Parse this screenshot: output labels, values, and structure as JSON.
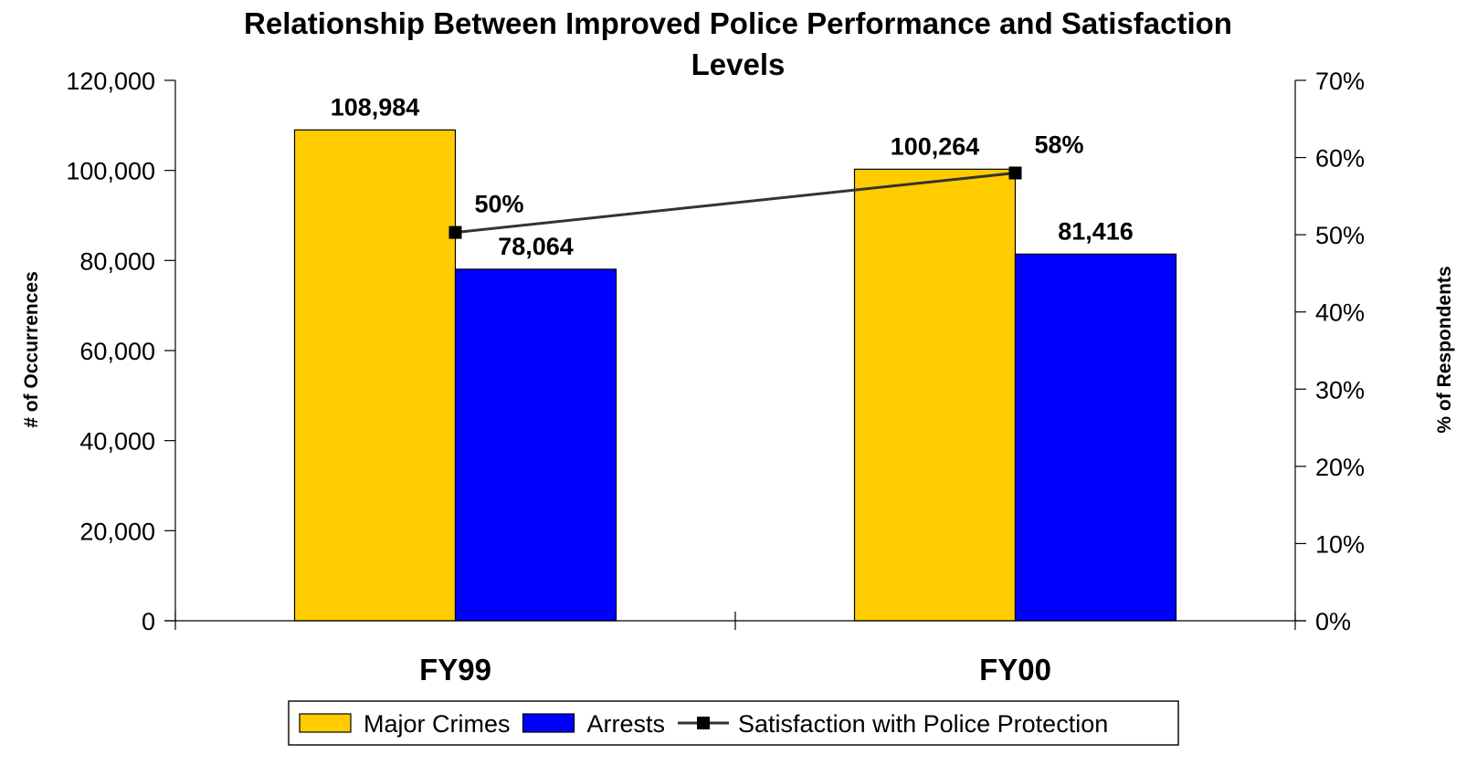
{
  "chart_data": {
    "type": "bar",
    "title": "Relationship Between Improved Police Performance and Satisfaction Levels",
    "title_lines": [
      "Relationship Between Improved Police Performance and Satisfaction",
      "Levels"
    ],
    "categories": [
      "FY99",
      "FY00"
    ],
    "series": [
      {
        "name": "Major Crimes",
        "type": "bar",
        "axis": "left",
        "color": "#FFCC00",
        "values": [
          108984,
          100264
        ],
        "labels": [
          "108,984",
          "100,264"
        ]
      },
      {
        "name": "Arrests",
        "type": "bar",
        "axis": "left",
        "color": "#0000FF",
        "values": [
          78064,
          81416
        ],
        "labels": [
          "78,064",
          "81,416"
        ]
      },
      {
        "name": "Satisfaction with Police Protection",
        "type": "line",
        "axis": "right",
        "color": "#333333",
        "values": [
          50.3,
          58
        ],
        "labels": [
          "50%",
          "58%"
        ]
      }
    ],
    "ylabel": "# of Occurrences",
    "y2label": "% of Respondents",
    "ylim": [
      0,
      120000
    ],
    "y2lim": [
      0,
      70
    ],
    "yticks": [
      "0",
      "20,000",
      "40,000",
      "60,000",
      "80,000",
      "100,000",
      "120,000"
    ],
    "y2ticks": [
      "0%",
      "10%",
      "20%",
      "30%",
      "40%",
      "50%",
      "60%",
      "70%"
    ],
    "grid": false,
    "legend_position": "bottom"
  }
}
